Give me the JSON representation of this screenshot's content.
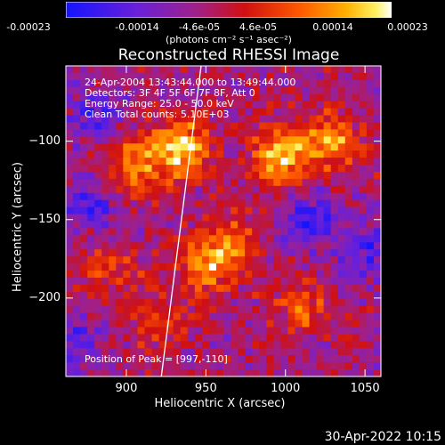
{
  "colorbar": {
    "ticks": [
      "-0.00023",
      "-0.00014",
      "-4.6e-05",
      "4.6e-05",
      "0.00014",
      "0.00023"
    ],
    "units": "(photons cm⁻² s⁻¹ asec⁻²)"
  },
  "annotations": {
    "time": "24-Apr-2004 13:43:44.000 to 13:49:44.000",
    "detectors": "Detectors: 3F 4F 5F 6F 7F 8F, Att 0",
    "energy": "Energy Range: 25.0 - 50.0 keV",
    "clean": "Clean     Total counts: 5.10E+03",
    "peak": "Position of Peak = [997,-110]"
  },
  "footer": "30-Apr-2022 10:15",
  "colors": {
    "background": "#000000",
    "foreground": "#ffffff",
    "limb_line": "#ffffff"
  },
  "chart_data": {
    "type": "heatmap",
    "title": "Reconstructed RHESSI Image",
    "xlabel": "Heliocentric X (arcsec)",
    "ylabel": "Heliocentric Y (arcsec)",
    "xlim": [
      862,
      1060
    ],
    "ylim": [
      -250,
      -52
    ],
    "xticks": [
      900,
      950,
      1000,
      1050
    ],
    "yticks": [
      -100,
      -150,
      -200
    ],
    "value_range": [
      -0.00023,
      0.00023
    ],
    "colormap": "rainbow-blue-to-white",
    "peak_position": [
      997,
      -110
    ],
    "limb_line_points": [
      [
        922,
        -250
      ],
      [
        947,
        -52
      ]
    ],
    "bright_sources": [
      {
        "x": 935,
        "y": -105,
        "value": 0.00023
      },
      {
        "x": 905,
        "y": -115,
        "value": 0.00018
      },
      {
        "x": 997,
        "y": -110,
        "value": 0.00023
      },
      {
        "x": 1030,
        "y": -100,
        "value": 0.00016
      },
      {
        "x": 950,
        "y": -180,
        "value": 0.00016
      },
      {
        "x": 965,
        "y": -165,
        "value": 0.00012
      },
      {
        "x": 890,
        "y": -180,
        "value": 0.0001
      },
      {
        "x": 1010,
        "y": -205,
        "value": 0.00012
      },
      {
        "x": 920,
        "y": -215,
        "value": 0.0001
      }
    ],
    "dark_regions": [
      {
        "x": 1015,
        "y": -150,
        "value": -0.00014
      },
      {
        "x": 875,
        "y": -140,
        "value": -0.00012
      },
      {
        "x": 880,
        "y": -85,
        "value": -0.0001
      },
      {
        "x": 1050,
        "y": -170,
        "value": -0.00012
      },
      {
        "x": 870,
        "y": -230,
        "value": -0.0001
      }
    ]
  }
}
